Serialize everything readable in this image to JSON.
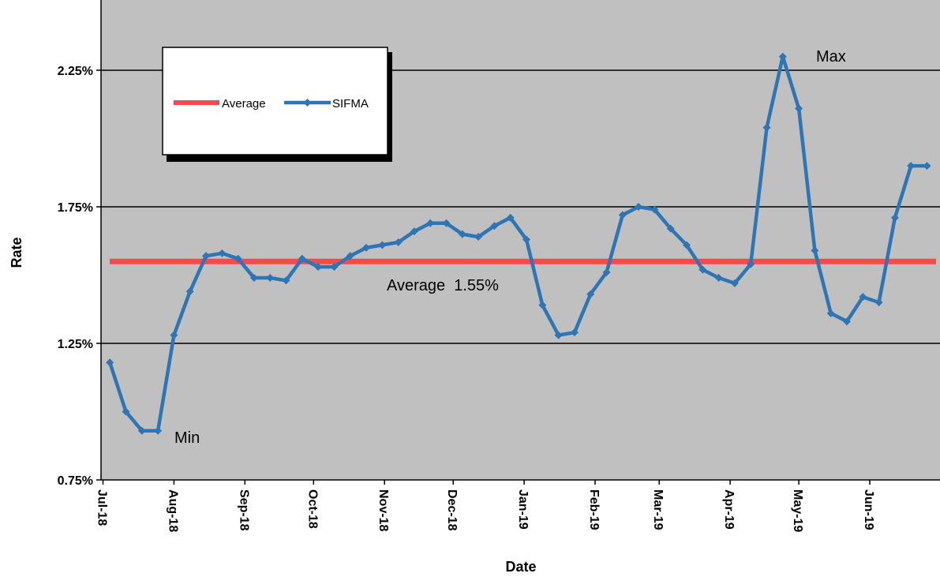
{
  "chart_data": {
    "type": "line",
    "xlabel": "Date",
    "ylabel": "Rate",
    "ylim": [
      0.75,
      2.5
    ],
    "y_ticks": [
      "0.75%",
      "1.25%",
      "1.75%",
      "2.25%"
    ],
    "x_ticks": [
      "Jul-18",
      "Aug-18",
      "Sep-18",
      "Oct-18",
      "Nov-18",
      "Dec-18",
      "Jan-19",
      "Feb-19",
      "Mar-19",
      "Apr-19",
      "May-19",
      "Jun-19"
    ],
    "grid": true,
    "legend_position": "top-left",
    "colors": {
      "plot_background": "#c0c0c0",
      "average": "#f04c4c",
      "sifma": "#2e75b6",
      "gridline": "#000000"
    },
    "series": [
      {
        "name": "Average",
        "type": "constant",
        "value": 1.55
      },
      {
        "name": "SIFMA",
        "x": [
          "2018-07-04",
          "2018-07-11",
          "2018-07-18",
          "2018-07-25",
          "2018-08-01",
          "2018-08-08",
          "2018-08-15",
          "2018-08-22",
          "2018-08-29",
          "2018-09-05",
          "2018-09-12",
          "2018-09-19",
          "2018-09-26",
          "2018-10-03",
          "2018-10-10",
          "2018-10-17",
          "2018-10-24",
          "2018-10-31",
          "2018-11-07",
          "2018-11-14",
          "2018-11-21",
          "2018-11-28",
          "2018-12-05",
          "2018-12-12",
          "2018-12-19",
          "2018-12-26",
          "2019-01-02",
          "2019-01-09",
          "2019-01-16",
          "2019-01-23",
          "2019-01-30",
          "2019-02-06",
          "2019-02-13",
          "2019-02-20",
          "2019-02-27",
          "2019-03-06",
          "2019-03-13",
          "2019-03-20",
          "2019-03-27",
          "2019-04-03",
          "2019-04-10",
          "2019-04-17",
          "2019-04-24",
          "2019-05-01",
          "2019-05-08",
          "2019-05-15",
          "2019-05-22",
          "2019-05-29",
          "2019-06-05",
          "2019-06-12",
          "2019-06-19",
          "2019-06-26"
        ],
        "values": [
          1.18,
          1.0,
          0.93,
          0.93,
          1.28,
          1.44,
          1.57,
          1.58,
          1.56,
          1.49,
          1.49,
          1.48,
          1.56,
          1.53,
          1.53,
          1.57,
          1.6,
          1.61,
          1.62,
          1.66,
          1.69,
          1.69,
          1.65,
          1.64,
          1.68,
          1.71,
          1.63,
          1.39,
          1.28,
          1.29,
          1.43,
          1.51,
          1.72,
          1.75,
          1.74,
          1.67,
          1.61,
          1.52,
          1.49,
          1.47,
          1.54,
          2.04,
          2.3,
          2.11,
          1.59,
          1.36,
          1.33,
          1.42,
          1.4,
          1.71,
          1.9,
          1.9
        ]
      }
    ],
    "annotations": {
      "min": "Min",
      "max": "Max",
      "average_label": "Average  1.55%"
    }
  }
}
